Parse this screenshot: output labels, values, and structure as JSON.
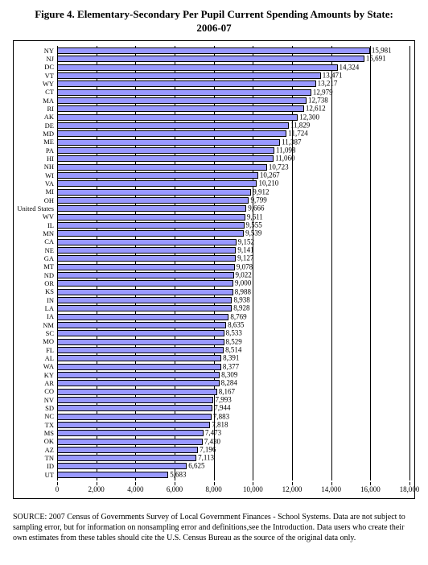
{
  "title_line1": "Figure 4. Elementary-Secondary Per Pupil Current Spending Amounts by State:",
  "title_line2": "2006-07",
  "chart": {
    "type": "bar-horizontal",
    "xlim": [
      0,
      18000
    ],
    "xtick_step": 2000,
    "xticks": [
      "0",
      "2,000",
      "4,000",
      "6,000",
      "8,000",
      "10,000",
      "12,000",
      "14,000",
      "16,000",
      "18,000"
    ],
    "bar_color": "#9999ff",
    "bar_border": "#000000",
    "grid_color": "#000000",
    "background": "#ffffff",
    "label_fontsize": 9,
    "rows": [
      {
        "state": "NY",
        "value": 15981,
        "label": "15,981"
      },
      {
        "state": "NJ",
        "value": 15691,
        "label": "15,691"
      },
      {
        "state": "DC",
        "value": 14324,
        "label": "14,324"
      },
      {
        "state": "VT",
        "value": 13471,
        "label": "13,471"
      },
      {
        "state": "WY",
        "value": 13217,
        "label": "13,217"
      },
      {
        "state": "CT",
        "value": 12979,
        "label": "12,979"
      },
      {
        "state": "MA",
        "value": 12738,
        "label": "12,738"
      },
      {
        "state": "RI",
        "value": 12612,
        "label": "12,612"
      },
      {
        "state": "AK",
        "value": 12300,
        "label": "12,300"
      },
      {
        "state": "DE",
        "value": 11829,
        "label": "11,829"
      },
      {
        "state": "MD",
        "value": 11724,
        "label": "11,724"
      },
      {
        "state": "ME",
        "value": 11387,
        "label": "11,387"
      },
      {
        "state": "PA",
        "value": 11098,
        "label": "11,098"
      },
      {
        "state": "HI",
        "value": 11060,
        "label": "11,060"
      },
      {
        "state": "NH",
        "value": 10723,
        "label": "10,723"
      },
      {
        "state": "WI",
        "value": 10267,
        "label": "10,267"
      },
      {
        "state": "VA",
        "value": 10210,
        "label": "10,210"
      },
      {
        "state": "MI",
        "value": 9912,
        "label": "9,912"
      },
      {
        "state": "OH",
        "value": 9799,
        "label": "9,799"
      },
      {
        "state": "United States",
        "value": 9666,
        "label": "9,666"
      },
      {
        "state": "WV",
        "value": 9611,
        "label": "9,611"
      },
      {
        "state": "IL",
        "value": 9555,
        "label": "9,555"
      },
      {
        "state": "MN",
        "value": 9539,
        "label": "9,539"
      },
      {
        "state": "CA",
        "value": 9152,
        "label": "9,152"
      },
      {
        "state": "NE",
        "value": 9141,
        "label": "9,141"
      },
      {
        "state": "GA",
        "value": 9127,
        "label": "9,127"
      },
      {
        "state": "MT",
        "value": 9078,
        "label": "9,078"
      },
      {
        "state": "ND",
        "value": 9022,
        "label": "9,022"
      },
      {
        "state": "OR",
        "value": 9000,
        "label": "9,000"
      },
      {
        "state": "KS",
        "value": 8988,
        "label": "8,988"
      },
      {
        "state": "IN",
        "value": 8938,
        "label": "8,938"
      },
      {
        "state": "LA",
        "value": 8928,
        "label": "8,928"
      },
      {
        "state": "IA",
        "value": 8769,
        "label": "8,769"
      },
      {
        "state": "NM",
        "value": 8635,
        "label": "8,635"
      },
      {
        "state": "SC",
        "value": 8533,
        "label": "8,533"
      },
      {
        "state": "MO",
        "value": 8529,
        "label": "8,529"
      },
      {
        "state": "FL",
        "value": 8514,
        "label": "8,514"
      },
      {
        "state": "AL",
        "value": 8391,
        "label": "8,391"
      },
      {
        "state": "WA",
        "value": 8377,
        "label": "8,377"
      },
      {
        "state": "KY",
        "value": 8309,
        "label": "8,309"
      },
      {
        "state": "AR",
        "value": 8284,
        "label": "8,284"
      },
      {
        "state": "CO",
        "value": 8167,
        "label": "8,167"
      },
      {
        "state": "NV",
        "value": 7993,
        "label": "7,993"
      },
      {
        "state": "SD",
        "value": 7944,
        "label": "7,944"
      },
      {
        "state": "NC",
        "value": 7883,
        "label": "7,883"
      },
      {
        "state": "TX",
        "value": 7818,
        "label": "7,818"
      },
      {
        "state": "MS",
        "value": 7473,
        "label": "7,473"
      },
      {
        "state": "OK",
        "value": 7430,
        "label": "7,430"
      },
      {
        "state": "AZ",
        "value": 7196,
        "label": "7,196"
      },
      {
        "state": "TN",
        "value": 7113,
        "label": "7,113"
      },
      {
        "state": "ID",
        "value": 6625,
        "label": "6,625"
      },
      {
        "state": "UT",
        "value": 5683,
        "label": "5,683"
      }
    ]
  },
  "footnote": "SOURCE: 2007 Census of Governments Survey of Local Government Finances - School Systems.  Data are not subject to sampling error, but for information on nonsampling error and definitions,see the Introduction.  Data users who create their own estimates from these tables should cite the U.S. Census Bureau as the source of the original data only."
}
